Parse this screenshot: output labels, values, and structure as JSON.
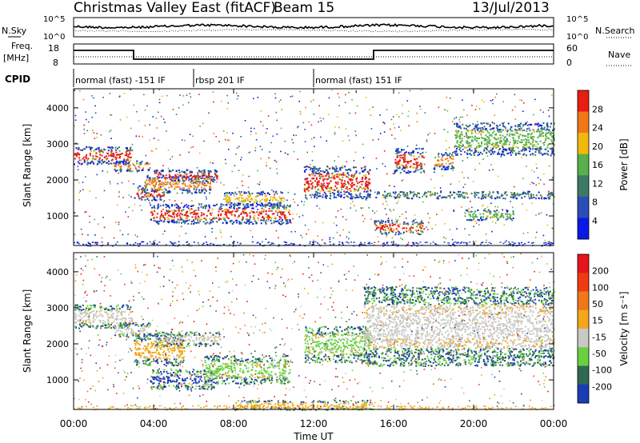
{
  "header": {
    "title": "Christmas Valley East (fitACF)",
    "beam": "Beam 15",
    "date": "13/Jul/2013"
  },
  "top_panels": {
    "nsky_label": "N.Sky",
    "nsky_ticks": [
      "10^5",
      "10^0"
    ],
    "nsearch_label": "N.Search",
    "nsearch_ticks": [
      "10^5",
      "10^0"
    ],
    "freq_label": "Freq.",
    "freq_unit": "[MHz]",
    "freq_ticks": [
      "18",
      "8"
    ],
    "nave_label": "Nave",
    "nave_ticks": [
      "60",
      "0"
    ],
    "cpid_label": "CPID",
    "cpid_segments": [
      {
        "label": "normal (fast) -151 IF",
        "start_hour": 0,
        "end_hour": 6
      },
      {
        "label": "rbsp 201 IF",
        "start_hour": 6,
        "end_hour": 12
      },
      {
        "label": "normal (fast) 151 IF",
        "start_hour": 12,
        "end_hour": 24
      }
    ]
  },
  "chart_data": [
    {
      "type": "heatmap",
      "title": "",
      "xlabel": "Time UT",
      "ylabel": "Slant Range [km]",
      "x_tick_labels": [
        "00:00",
        "04:00",
        "08:00",
        "12:00",
        "16:00",
        "20:00",
        "00:00"
      ],
      "x_ticks_hours": [
        0,
        4,
        8,
        12,
        16,
        20,
        24
      ],
      "y_tick_labels": [
        "1000",
        "2000",
        "3000",
        "4000"
      ],
      "y_ticks": [
        1000,
        2000,
        3000,
        4000
      ],
      "ylim": [
        180,
        4530
      ],
      "xlim_hours": [
        0,
        24
      ],
      "colorbar": {
        "label": "Power [dB]",
        "ticks": [
          "4",
          "8",
          "12",
          "16",
          "20",
          "24",
          "28"
        ],
        "colors": [
          "#0a1ae6",
          "#2a4eb8",
          "#3c7a64",
          "#58b04a",
          "#f2b80c",
          "#f07818",
          "#e81e12"
        ]
      },
      "echo_bands": [
        {
          "t0": 0.0,
          "t1": 2.9,
          "r0": 2450,
          "r1": 2950,
          "core": "#e81e12"
        },
        {
          "t0": 2.0,
          "t1": 3.8,
          "r0": 2250,
          "r1": 2550,
          "core": "#f07818"
        },
        {
          "t0": 3.0,
          "t1": 4.5,
          "r0": 1450,
          "r1": 1850,
          "core": "#e81e12"
        },
        {
          "t0": 3.5,
          "t1": 7.0,
          "r0": 1650,
          "r1": 2150,
          "core": "#f07818"
        },
        {
          "t0": 4.0,
          "t1": 7.2,
          "r0": 1950,
          "r1": 2300,
          "core": "#e81e12"
        },
        {
          "t0": 3.8,
          "t1": 10.8,
          "r0": 800,
          "r1": 1350,
          "core": "#e81e12"
        },
        {
          "t0": 7.5,
          "t1": 10.5,
          "r0": 1300,
          "r1": 1700,
          "core": "#f2b80c"
        },
        {
          "t0": 11.5,
          "t1": 14.8,
          "r0": 1500,
          "r1": 2400,
          "core": "#e81e12"
        },
        {
          "t0": 15.0,
          "t1": 17.5,
          "r0": 500,
          "r1": 900,
          "core": "#e81e12"
        },
        {
          "t0": 16.0,
          "t1": 17.5,
          "r0": 2200,
          "r1": 2900,
          "core": "#e81e12"
        },
        {
          "t0": 18.0,
          "t1": 19.0,
          "r0": 2300,
          "r1": 2800,
          "core": "#f07818"
        },
        {
          "t0": 19.0,
          "t1": 24.0,
          "r0": 2700,
          "r1": 3600,
          "core": "#58b04a"
        },
        {
          "t0": 15.0,
          "t1": 24.0,
          "r0": 1500,
          "r1": 1700,
          "core": "#3c7a64"
        },
        {
          "t0": 19.5,
          "t1": 22.0,
          "r0": 900,
          "r1": 1200,
          "core": "#58b04a"
        }
      ]
    },
    {
      "type": "heatmap",
      "title": "",
      "xlabel": "Time UT",
      "ylabel": "Slant Range [km]",
      "x_tick_labels": [
        "00:00",
        "04:00",
        "08:00",
        "12:00",
        "16:00",
        "20:00",
        "00:00"
      ],
      "x_ticks_hours": [
        0,
        4,
        8,
        12,
        16,
        20,
        24
      ],
      "y_tick_labels": [
        "1000",
        "2000",
        "3000",
        "4000"
      ],
      "y_ticks": [
        1000,
        2000,
        3000,
        4000
      ],
      "ylim": [
        180,
        4530
      ],
      "xlim_hours": [
        0,
        24
      ],
      "colorbar": {
        "label": "Velocity [m s⁻¹]",
        "ticks": [
          "200",
          "100",
          "50",
          "15",
          "-15",
          "-50",
          "-100",
          "-200"
        ],
        "colors": [
          "#1a3cb4",
          "#2e6a50",
          "#6ad040",
          "#c8c8c4",
          "#f2a818",
          "#f07818",
          "#f03a12",
          "#e8141c"
        ]
      },
      "echo_bands": [
        {
          "t0": 0.0,
          "t1": 2.9,
          "r0": 2450,
          "r1": 3100,
          "core": "#c8c8c4"
        },
        {
          "t0": 2.0,
          "t1": 3.8,
          "r0": 2200,
          "r1": 2600,
          "core": "#c8c8c4"
        },
        {
          "t0": 3.0,
          "t1": 5.5,
          "r0": 1400,
          "r1": 2300,
          "core": "#f2a818"
        },
        {
          "t0": 4.0,
          "t1": 7.3,
          "r0": 1950,
          "r1": 2350,
          "core": "#c8c8c4"
        },
        {
          "t0": 3.8,
          "t1": 7.0,
          "r0": 750,
          "r1": 1300,
          "core": "#1a3cb4"
        },
        {
          "t0": 6.5,
          "t1": 10.8,
          "r0": 900,
          "r1": 1700,
          "core": "#6ad040"
        },
        {
          "t0": 11.5,
          "t1": 14.8,
          "r0": 1500,
          "r1": 2500,
          "core": "#6ad040"
        },
        {
          "t0": 14.5,
          "t1": 24.0,
          "r0": 1400,
          "r1": 3600,
          "core": "#c8c8c4"
        },
        {
          "t0": 8.0,
          "t1": 15.0,
          "r0": 180,
          "r1": 450,
          "core": "#f2a818"
        }
      ]
    }
  ]
}
